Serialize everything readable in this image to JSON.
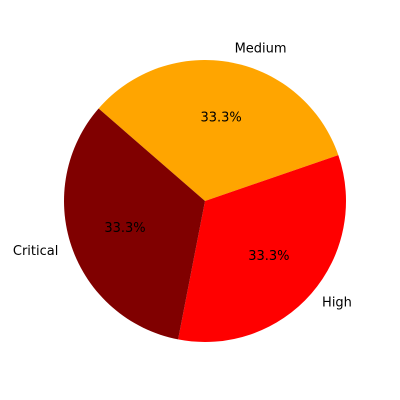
{
  "chart_data": {
    "type": "pie",
    "labels": [
      "Medium",
      "High",
      "Critical"
    ],
    "values": [
      33.3,
      33.3,
      33.3
    ],
    "percent_labels": [
      "33.3%",
      "33.3%",
      "33.3%"
    ],
    "colors": [
      "#FFA500",
      "#FF0000",
      "#800000"
    ],
    "start_angle_deg": 139,
    "direction": "clockwise",
    "grid": false,
    "legend": "none"
  }
}
